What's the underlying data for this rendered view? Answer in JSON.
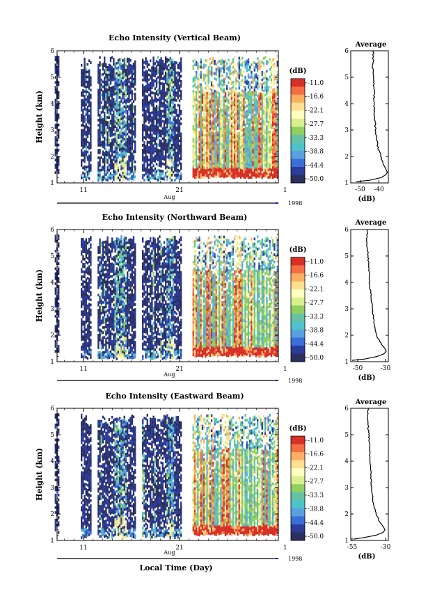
{
  "chart_data": [
    {
      "type": "heatmap",
      "title": "Echo Intensity (Vertical Beam)",
      "ylabel": "Height (km)",
      "xlabel": "",
      "x_tick_labels": [
        "11",
        "21",
        "1"
      ],
      "x_month_label": "Aug",
      "year_label": "1998",
      "ylim": [
        1,
        6
      ],
      "y_ticks": [
        1,
        2,
        3,
        4,
        5,
        6
      ],
      "colorbar": {
        "unit": "(dB)",
        "levels": [
          "-11.0",
          "-16.6",
          "-22.1",
          "-27.7",
          "-33.3",
          "-38.8",
          "-44.4",
          "-50.0"
        ]
      },
      "average_profile": {
        "title": "Average",
        "xlabel": "(dB)",
        "x_ticks": [
          -50,
          -40
        ],
        "xlim": [
          -55,
          -35
        ],
        "heights": [
          1.05,
          1.1,
          1.2,
          1.3,
          1.4,
          1.5,
          1.7,
          2.0,
          2.3,
          2.6,
          3.0,
          3.5,
          4.0,
          4.5,
          5.0,
          5.5,
          6.0
        ],
        "values": [
          -52,
          -45,
          -39,
          -36.5,
          -35.5,
          -36.2,
          -37.5,
          -39.0,
          -40.3,
          -41.2,
          -41.8,
          -42.3,
          -42.6,
          -42.4,
          -42.8,
          -43.2,
          -43.0
        ]
      }
    },
    {
      "type": "heatmap",
      "title": "Echo Intensity (Northward Beam)",
      "ylabel": "Height (km)",
      "xlabel": "",
      "x_tick_labels": [
        "11",
        "21",
        "1"
      ],
      "x_month_label": "Aug",
      "year_label": "1998",
      "ylim": [
        1,
        6
      ],
      "y_ticks": [
        1,
        2,
        3,
        4,
        5,
        6
      ],
      "colorbar": {
        "unit": "(dB)",
        "levels": [
          "-11.0",
          "-16.6",
          "-22.1",
          "-27.7",
          "-33.3",
          "-38.8",
          "-44.4",
          "-50.0"
        ]
      },
      "average_profile": {
        "title": "Average",
        "xlabel": "(dB)",
        "x_ticks": [
          -50,
          -30
        ],
        "xlim": [
          -55,
          -28
        ],
        "heights": [
          1.05,
          1.1,
          1.2,
          1.3,
          1.4,
          1.5,
          1.7,
          2.0,
          2.5,
          3.0,
          3.5,
          4.0,
          4.5,
          5.0,
          5.5,
          6.0
        ],
        "values": [
          -54,
          -45,
          -36,
          -31,
          -29.5,
          -30.5,
          -33.5,
          -36.5,
          -38.5,
          -39.5,
          -40.5,
          -41.5,
          -42.0,
          -42.5,
          -43.5,
          -43.0
        ]
      }
    },
    {
      "type": "heatmap",
      "title": "Echo Intensity (Eastward Beam)",
      "ylabel": "Height (km)",
      "xlabel": "Local Time (Day)",
      "x_tick_labels": [
        "11",
        "21",
        "1"
      ],
      "x_month_label": "Aug",
      "year_label": "1998",
      "ylim": [
        1,
        6
      ],
      "y_ticks": [
        1,
        2,
        3,
        4,
        5,
        6
      ],
      "colorbar": {
        "unit": "(dB)",
        "levels": [
          "-11.0",
          "-16.6",
          "-22.1",
          "-27.7",
          "-33.3",
          "-38.8",
          "-44.4",
          "-50.0"
        ]
      },
      "average_profile": {
        "title": "Average",
        "xlabel": "(dB)",
        "x_ticks": [
          -55,
          -30
        ],
        "xlim": [
          -56,
          -28
        ],
        "heights": [
          1.05,
          1.1,
          1.2,
          1.3,
          1.4,
          1.5,
          1.7,
          2.0,
          2.5,
          3.0,
          3.5,
          4.0,
          4.5,
          5.0,
          5.5,
          6.0
        ],
        "values": [
          -54,
          -47,
          -37,
          -32,
          -30.5,
          -31.5,
          -34.5,
          -37.0,
          -39.5,
          -40.5,
          -41.0,
          -41.5,
          -42.0,
          -42.5,
          -43.5,
          -43.0
        ]
      }
    }
  ],
  "colors": {
    "scale": [
      "#d73027",
      "#f46d43",
      "#fdae61",
      "#fee090",
      "#ffffbf",
      "#d9ef8b",
      "#91cf60",
      "#66c2a5",
      "#4ec3c9",
      "#5aa0e0",
      "#3a6fd8",
      "#2c3c9a",
      "#2b2f5e"
    ],
    "no_data": "#ffffff",
    "timeline": "#000000",
    "timeline_end": "#1a1aa0"
  }
}
